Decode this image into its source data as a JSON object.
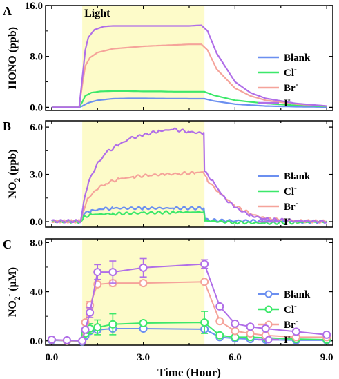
{
  "chart_data": [
    {
      "type": "line",
      "panel_label": "A",
      "annotation": "Light",
      "light_on_x": [
        1.0,
        5.0
      ],
      "ylabel": "HONO (ppb)",
      "xlim": [
        -0.2,
        9.2
      ],
      "ylim": [
        -0.5,
        16.0
      ],
      "yticks": [
        "0.0",
        "8.0",
        "16.0"
      ],
      "ytick_values": [
        0,
        8,
        16
      ],
      "legend_position": "right",
      "series": [
        {
          "name": "Blank",
          "color": "#6b8ff0",
          "x": [
            0,
            0.9,
            1.0,
            1.2,
            1.5,
            2,
            2.5,
            3,
            3.5,
            4,
            4.5,
            5,
            5.3,
            6,
            7,
            8,
            9
          ],
          "y": [
            0,
            0,
            0.2,
            0.7,
            1.1,
            1.35,
            1.4,
            1.4,
            1.38,
            1.36,
            1.35,
            1.35,
            1.0,
            0.5,
            0.2,
            0.1,
            0.05
          ]
        },
        {
          "name": "Cl-",
          "color": "#3ce86a",
          "x": [
            0,
            0.9,
            1.0,
            1.1,
            1.3,
            1.6,
            2,
            2.5,
            3,
            3.5,
            4,
            4.5,
            5,
            5.3,
            6,
            7,
            8,
            9
          ],
          "y": [
            0,
            0,
            0.8,
            1.8,
            2.3,
            2.5,
            2.55,
            2.55,
            2.5,
            2.5,
            2.45,
            2.45,
            2.45,
            1.9,
            1.1,
            0.6,
            0.3,
            0.15
          ]
        },
        {
          "name": "Br-",
          "color": "#f5a39a",
          "x": [
            0,
            0.9,
            1.0,
            1.1,
            1.25,
            1.5,
            2,
            2.5,
            3,
            3.5,
            4,
            4.5,
            4.9,
            5.1,
            5.4,
            6,
            6.5,
            7,
            8,
            9
          ],
          "y": [
            0,
            0,
            3.5,
            6.5,
            7.8,
            8.6,
            9.2,
            9.4,
            9.6,
            9.7,
            9.8,
            9.9,
            9.9,
            9.0,
            6.0,
            3.0,
            1.8,
            1.1,
            0.5,
            0.2
          ]
        },
        {
          "name": "I-",
          "color": "#b06ee8",
          "x": [
            0,
            0.9,
            1.0,
            1.1,
            1.2,
            1.4,
            1.7,
            2,
            2.5,
            3,
            3.5,
            4,
            4.5,
            4.9,
            5.1,
            5.4,
            6,
            6.5,
            7,
            8,
            9
          ],
          "y": [
            0,
            0,
            4.5,
            9.0,
            11.0,
            12.2,
            12.7,
            12.8,
            12.8,
            12.8,
            12.8,
            12.8,
            12.8,
            12.9,
            12.0,
            8.5,
            4.0,
            2.3,
            1.4,
            0.6,
            0.2
          ]
        }
      ]
    },
    {
      "type": "line",
      "panel_label": "B",
      "ylabel": "NO2 (ppb)",
      "light_on_x": [
        1.0,
        5.0
      ],
      "xlim": [
        -0.2,
        9.2
      ],
      "ylim": [
        -0.35,
        6.4
      ],
      "yticks": [
        "0.0",
        "3.0",
        "6.0"
      ],
      "ytick_values": [
        0,
        3,
        6
      ],
      "legend_position": "right",
      "series": [
        {
          "name": "Blank",
          "color": "#6b8ff0",
          "x": [
            0,
            0.95,
            1.05,
            1.3,
            1.7,
            2,
            3,
            4,
            4.98,
            5.02,
            6,
            7,
            8,
            9
          ],
          "y": [
            0.02,
            0.02,
            0.5,
            0.7,
            0.8,
            0.85,
            0.85,
            0.85,
            0.85,
            0.1,
            0.05,
            0.05,
            0.0,
            0.0
          ]
        },
        {
          "name": "Cl-",
          "color": "#3ce86a",
          "x": [
            0,
            0.95,
            1.05,
            1.3,
            2,
            3,
            4,
            4.98,
            5.02,
            6,
            7,
            8,
            9
          ],
          "y": [
            0.0,
            0.0,
            0.3,
            0.45,
            0.5,
            0.55,
            0.6,
            0.6,
            0.05,
            -0.05,
            -0.1,
            -0.05,
            0.0
          ]
        },
        {
          "name": "Br-",
          "color": "#f5a39a",
          "x": [
            0,
            0.95,
            1.05,
            1.2,
            1.5,
            1.8,
            2.2,
            2.7,
            3.2,
            3.7,
            4.2,
            4.7,
            4.98,
            5.1,
            5.5,
            6,
            6.5,
            7,
            8,
            9
          ],
          "y": [
            0.02,
            0.02,
            0.8,
            1.5,
            2.1,
            2.45,
            2.7,
            2.85,
            2.95,
            3.0,
            3.05,
            3.1,
            3.15,
            2.6,
            1.8,
            1.0,
            0.5,
            0.2,
            0.05,
            0.0
          ]
        },
        {
          "name": "I-",
          "color": "#b06ee8",
          "x": [
            0,
            0.95,
            1.05,
            1.2,
            1.5,
            1.8,
            2.2,
            2.6,
            3,
            3.5,
            4,
            4.5,
            4.98,
            5.0,
            5.3,
            5.6,
            6,
            6.5,
            7,
            8,
            9
          ],
          "y": [
            0.03,
            0.03,
            1.2,
            2.5,
            3.7,
            4.4,
            4.9,
            5.3,
            5.5,
            5.75,
            5.85,
            5.7,
            5.6,
            3.2,
            2.5,
            1.6,
            0.9,
            0.4,
            0.15,
            0.05,
            0.0
          ]
        }
      ]
    },
    {
      "type": "scatter",
      "panel_label": "C",
      "ylabel": "NO2- (μM)",
      "xlabel": "Time (Hour)",
      "light_on_x": [
        1.0,
        5.0
      ],
      "xlim": [
        -0.2,
        9.2
      ],
      "ylim": [
        -0.35,
        8.3
      ],
      "xticks": [
        "0.0",
        "3.0",
        "6.0",
        "9.0"
      ],
      "xtick_values": [
        0,
        3,
        6,
        9
      ],
      "yticks": [
        "0.0",
        "4.0",
        "8.0"
      ],
      "ytick_values": [
        0,
        4,
        8
      ],
      "legend_position": "right",
      "series": [
        {
          "name": "Blank",
          "color": "#6b8ff0",
          "x": [
            0,
            0.5,
            1,
            1.1,
            1.25,
            1.5,
            2,
            3,
            5,
            5.5,
            6,
            6.5,
            7,
            8,
            9
          ],
          "y": [
            0.05,
            0.0,
            -0.05,
            0.4,
            0.8,
            0.9,
            1.0,
            1.0,
            0.95,
            0.3,
            0.2,
            0.15,
            0.1,
            0.05,
            0.05
          ],
          "err": [
            0,
            0,
            0,
            0,
            0.1,
            0.15,
            0.1,
            0,
            0.1,
            0,
            0,
            0,
            0,
            0,
            0
          ]
        },
        {
          "name": "Cl-",
          "color": "#3ce86a",
          "x": [
            0,
            0.5,
            1,
            1.1,
            1.25,
            1.5,
            2,
            3,
            5,
            5.5,
            6,
            6.5,
            7,
            8,
            9
          ],
          "y": [
            0.1,
            0.0,
            0.0,
            0.6,
            1.0,
            1.1,
            1.35,
            1.45,
            1.5,
            0.45,
            0.3,
            0.3,
            0.25,
            0.15,
            0.1
          ],
          "err": [
            0,
            0,
            0,
            0,
            0.4,
            0.6,
            0.85,
            0,
            0.9,
            0,
            0,
            0,
            0,
            0,
            0
          ]
        },
        {
          "name": "Br-",
          "color": "#f5a39a",
          "x": [
            0,
            0.5,
            1,
            1.1,
            1.25,
            1.5,
            2,
            3,
            5,
            5.5,
            6,
            6.5,
            7,
            8,
            9
          ],
          "y": [
            0.1,
            0.0,
            0.0,
            1.5,
            2.9,
            4.6,
            4.7,
            4.7,
            4.8,
            1.6,
            0.8,
            0.6,
            0.45,
            0.3,
            0.3
          ],
          "err": [
            0,
            0,
            0,
            0,
            0.3,
            0.2,
            0.25,
            0.2,
            0.15,
            0,
            0,
            0,
            0,
            0,
            0
          ]
        },
        {
          "name": "I-",
          "color": "#b06ee8",
          "x": [
            0,
            0.5,
            1,
            1.1,
            1.25,
            1.5,
            2,
            3,
            5,
            5.5,
            6,
            6.5,
            7,
            8,
            9
          ],
          "y": [
            0.1,
            0.05,
            0.0,
            0.9,
            2.3,
            5.6,
            5.6,
            5.95,
            6.25,
            2.8,
            1.4,
            1.15,
            1.0,
            0.75,
            0.5
          ],
          "err": [
            0,
            0,
            0,
            0,
            0.4,
            0.6,
            0.9,
            0.75,
            0.35,
            0,
            0,
            0,
            0,
            0,
            0
          ]
        }
      ]
    }
  ]
}
